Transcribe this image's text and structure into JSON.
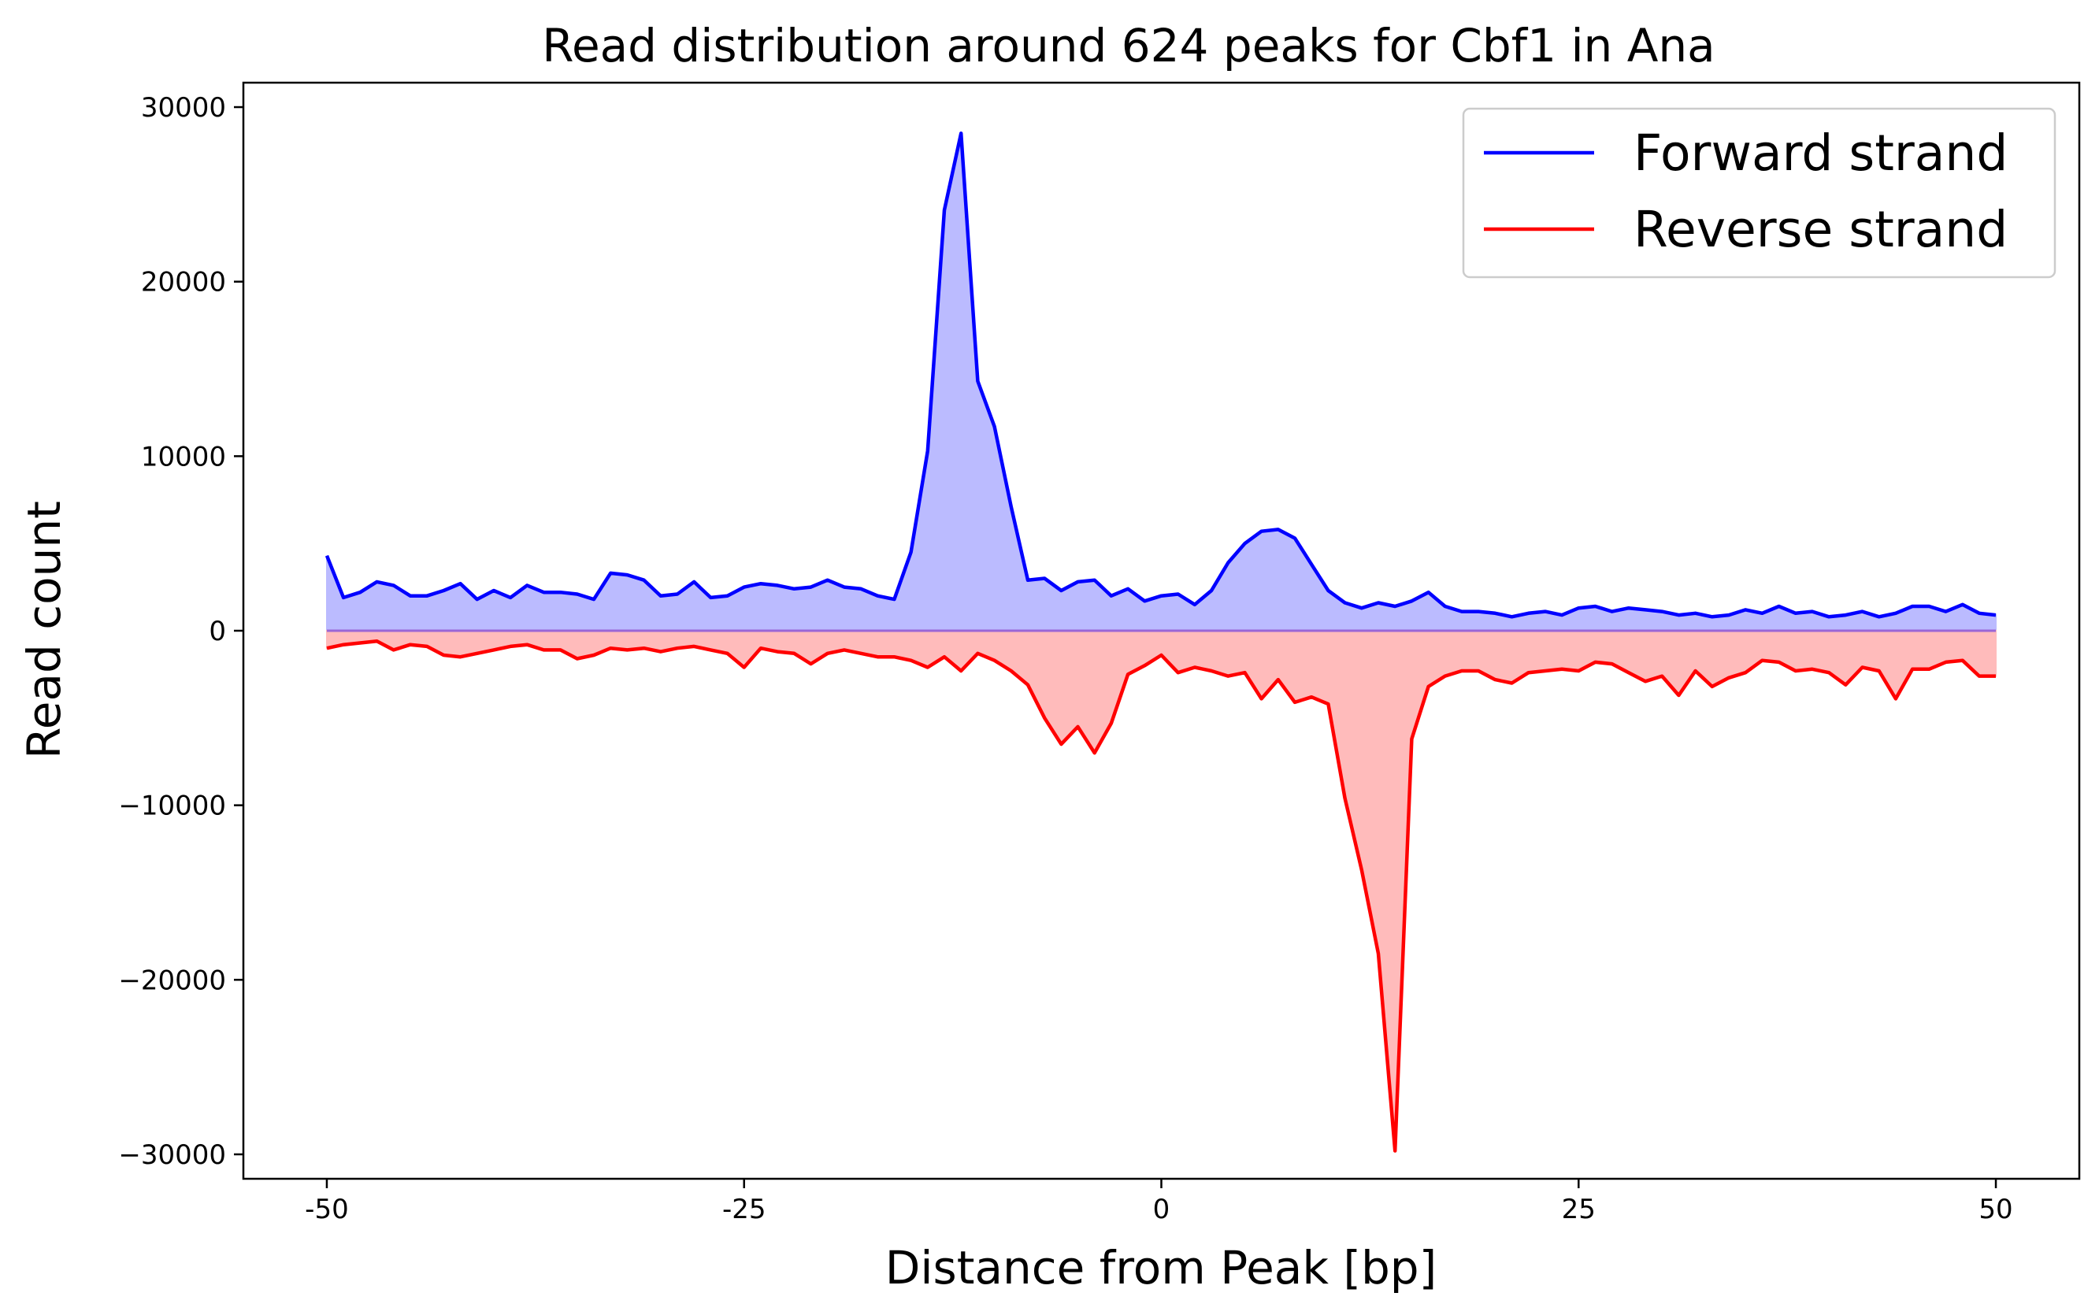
{
  "chart_data": {
    "type": "area",
    "title": "Read distribution around 624 peaks for Cbf1 in Ana",
    "xlabel": "Distance from Peak [bp]",
    "ylabel": "Read count",
    "xlim": [
      -55,
      55
    ],
    "ylim": [
      -31400,
      31400
    ],
    "x_ticks": [
      -50,
      -25,
      0,
      25,
      50
    ],
    "x_tick_labels": [
      "-50",
      "-25",
      "0",
      "25",
      "50"
    ],
    "y_ticks": [
      30000,
      20000,
      10000,
      0,
      -10000,
      -20000,
      -30000
    ],
    "y_tick_labels": [
      "30000",
      "20000",
      "10000",
      "0",
      "−10000",
      "−20000",
      "−30000"
    ],
    "grid": false,
    "legend_position": "top-right",
    "x": [
      -50,
      -49,
      -48,
      -47,
      -46,
      -45,
      -44,
      -43,
      -42,
      -41,
      -40,
      -39,
      -38,
      -37,
      -36,
      -35,
      -34,
      -33,
      -32,
      -31,
      -30,
      -29,
      -28,
      -27,
      -26,
      -25,
      -24,
      -23,
      -22,
      -21,
      -20,
      -19,
      -18,
      -17,
      -16,
      -15,
      -14,
      -13,
      -12,
      -11,
      -10,
      -9,
      -8,
      -7,
      -6,
      -5,
      -4,
      -3,
      -2,
      -1,
      0,
      1,
      2,
      3,
      4,
      5,
      6,
      7,
      8,
      9,
      10,
      11,
      12,
      13,
      14,
      15,
      16,
      17,
      18,
      19,
      20,
      21,
      22,
      23,
      24,
      25,
      26,
      27,
      28,
      29,
      30,
      31,
      32,
      33,
      34,
      35,
      36,
      37,
      38,
      39,
      40,
      41,
      42,
      43,
      44,
      45,
      46,
      47,
      48,
      49,
      50
    ],
    "series": [
      {
        "name": "Forward strand",
        "color": "#0000ff",
        "fill": "#bbbbff",
        "values": [
          4300,
          1900,
          2200,
          2800,
          2600,
          2000,
          2000,
          2300,
          2700,
          1800,
          2300,
          1900,
          2600,
          2200,
          2200,
          2100,
          1800,
          3300,
          3200,
          2900,
          2000,
          2100,
          2800,
          1900,
          2000,
          2500,
          2700,
          2600,
          2400,
          2500,
          2900,
          2500,
          2400,
          2000,
          1800,
          4500,
          10300,
          24100,
          28500,
          14300,
          11700,
          7100,
          2900,
          3000,
          2300,
          2800,
          2900,
          2000,
          2400,
          1700,
          2000,
          2100,
          1500,
          2300,
          3900,
          5000,
          5700,
          5800,
          5300,
          3800,
          2300,
          1600,
          1300,
          1600,
          1400,
          1700,
          2200,
          1400,
          1100,
          1100,
          1000,
          800,
          1000,
          1100,
          900,
          1300,
          1400,
          1100,
          1300,
          1200,
          1100,
          900,
          1000,
          800,
          900,
          1200,
          1000,
          1400,
          1000,
          1100,
          800,
          900,
          1100,
          800,
          1000,
          1400,
          1400,
          1100,
          1500,
          1000,
          900
        ]
      },
      {
        "name": "Reverse strand",
        "color": "#ff0000",
        "fill": "#ffbbbb",
        "values": [
          -1000,
          -800,
          -700,
          -600,
          -1100,
          -800,
          -900,
          -1400,
          -1500,
          -1300,
          -1100,
          -900,
          -800,
          -1100,
          -1100,
          -1600,
          -1400,
          -1000,
          -1100,
          -1000,
          -1200,
          -1000,
          -900,
          -1100,
          -1300,
          -2100,
          -1000,
          -1200,
          -1300,
          -1900,
          -1300,
          -1100,
          -1300,
          -1500,
          -1500,
          -1700,
          -2100,
          -1500,
          -2300,
          -1300,
          -1700,
          -2300,
          -3100,
          -5000,
          -6500,
          -5500,
          -7000,
          -5300,
          -2500,
          -2000,
          -1400,
          -2400,
          -2100,
          -2300,
          -2600,
          -2400,
          -3900,
          -2800,
          -4100,
          -3800,
          -4200,
          -9600,
          -13700,
          -18500,
          -29800,
          -6200,
          -3200,
          -2600,
          -2300,
          -2300,
          -2800,
          -3000,
          -2400,
          -2300,
          -2200,
          -2300,
          -1800,
          -1900,
          -2400,
          -2900,
          -2600,
          -3700,
          -2300,
          -3200,
          -2700,
          -2400,
          -1700,
          -1800,
          -2300,
          -2200,
          -2400,
          -3100,
          -2100,
          -2300,
          -3900,
          -2200,
          -2200,
          -1800,
          -1700,
          -2600,
          -2600
        ]
      }
    ]
  }
}
